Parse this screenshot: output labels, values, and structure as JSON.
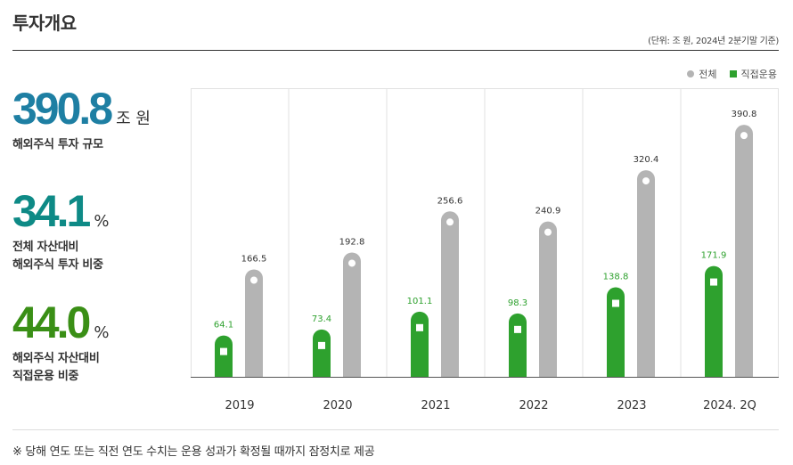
{
  "header": {
    "title": "투자개요",
    "unit_note": "(단위: 조 원, 2024년 2분기말 기준)"
  },
  "legend": {
    "total": "전체",
    "direct": "직접운용"
  },
  "stats": [
    {
      "value": "390.8",
      "unit": "조 원",
      "label_lines": [
        "해외주식 투자 규모"
      ]
    },
    {
      "value": "34.1",
      "unit": "%",
      "label_lines": [
        "전체 자산대비",
        "해외주식 투자 비중"
      ]
    },
    {
      "value": "44.0",
      "unit": "%",
      "label_lines": [
        "해외주식 자산대비",
        "직접운용 비중"
      ]
    }
  ],
  "colors": {
    "total_bar": "#b4b4b4",
    "direct_bar": "#2ea12e",
    "direct_label": "#2ea12e",
    "grid": "#e2e2e2"
  },
  "chart_data": {
    "type": "bar",
    "categories": [
      "2019",
      "2020",
      "2021",
      "2022",
      "2023",
      "2024. 2Q"
    ],
    "series": [
      {
        "name": "직접운용",
        "values": [
          64.1,
          73.4,
          101.1,
          98.3,
          138.8,
          171.9
        ]
      },
      {
        "name": "전체",
        "values": [
          166.5,
          192.8,
          256.6,
          240.9,
          320.4,
          390.8
        ]
      }
    ],
    "value_labels": {
      "direct": [
        "64.1",
        "73.4",
        "101.1",
        "98.3",
        "138.8",
        "171.9"
      ],
      "total": [
        "166.5",
        "192.8",
        "256.6",
        "240.9",
        "320.4",
        "390.8"
      ]
    },
    "ylim": [
      0,
      420
    ],
    "grid": true,
    "legend_position": "top-right"
  },
  "footnote": "※  당해 연도 또는 직전 연도 수치는 운용 성과가 확정될 때까지 잠정치로 제공"
}
